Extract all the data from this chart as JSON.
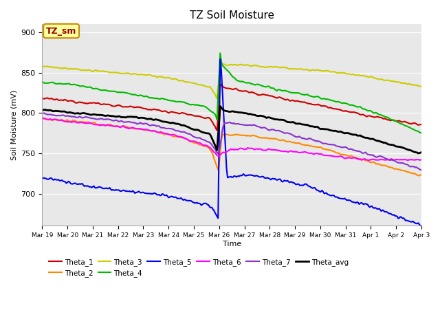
{
  "title": "TZ Soil Moisture",
  "ylabel": "Soil Moisture (mV)",
  "xlabel": "Time",
  "ylim": [
    660,
    910
  ],
  "series": {
    "Theta_1": {
      "color": "#cc0000",
      "lw": 1.5
    },
    "Theta_2": {
      "color": "#ff8800",
      "lw": 1.5
    },
    "Theta_3": {
      "color": "#cccc00",
      "lw": 1.5
    },
    "Theta_4": {
      "color": "#00bb00",
      "lw": 1.5
    },
    "Theta_5": {
      "color": "#0000ee",
      "lw": 1.5
    },
    "Theta_6": {
      "color": "#ff00ff",
      "lw": 1.5
    },
    "Theta_7": {
      "color": "#8833cc",
      "lw": 1.5
    },
    "Theta_avg": {
      "color": "#000000",
      "lw": 2.0
    }
  },
  "xtick_labels": [
    "Mar 19",
    "Mar 20",
    "Mar 21",
    "Mar 22",
    "Mar 23",
    "Mar 24",
    "Mar 25",
    "Mar 26",
    "Mar 27",
    "Mar 28",
    "Mar 29",
    "Mar 30",
    "Mar 31",
    "Apr 1",
    "Apr 2",
    "Apr 3"
  ],
  "annotation_text": "TZ_sm",
  "annotation_bg": "#ffffa0",
  "annotation_border": "#cc8800",
  "fig_bg": "#ffffff",
  "plot_bg": "#e8e8e8"
}
